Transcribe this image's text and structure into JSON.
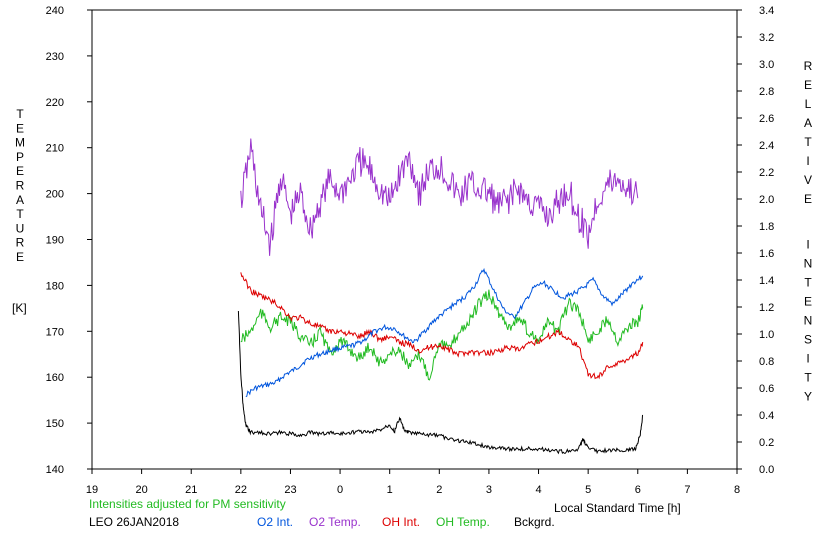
{
  "chart_data": {
    "type": "line",
    "left_axis": {
      "label": "TEMPERATURE",
      "unit": "[K]",
      "ylim": [
        140,
        240
      ],
      "ticks": [
        "140",
        "150",
        "160",
        "170",
        "180",
        "190",
        "200",
        "210",
        "220",
        "230",
        "240"
      ]
    },
    "right_axis": {
      "label": "RELATIVE INTENSITY",
      "ylim": [
        0.0,
        3.4
      ],
      "ticks": [
        "0.0",
        "0.2",
        "0.4",
        "0.6",
        "0.8",
        "1.0",
        "1.2",
        "1.4",
        "1.6",
        "1.8",
        "2.0",
        "2.2",
        "2.4",
        "2.6",
        "2.8",
        "3.0",
        "3.2",
        "3.4"
      ]
    },
    "x_axis": {
      "label": "Local Standard Time [h]",
      "range": [
        19,
        32
      ],
      "tick_labels": [
        "19",
        "20",
        "21",
        "22",
        "23",
        "0",
        "1",
        "2",
        "3",
        "4",
        "5",
        "6",
        "7",
        "8"
      ]
    },
    "note": "Intensities adjusted for PM sensitivity",
    "station": "LEO 26JAN2018",
    "grid": false,
    "series": [
      {
        "name": "O2 Int.",
        "color": "#0055dd",
        "axis": "right",
        "x": [
          22.1,
          22.3,
          22.5,
          22.7,
          22.9,
          23.1,
          23.3,
          23.5,
          23.7,
          23.9,
          24.1,
          24.3,
          24.5,
          24.7,
          24.9,
          25.1,
          25.3,
          25.5,
          25.7,
          25.9,
          26.1,
          26.3,
          26.5,
          26.7,
          26.9,
          27.1,
          27.3,
          27.5,
          27.7,
          27.9,
          28.1,
          28.3,
          28.5,
          28.7,
          28.9,
          29.1,
          29.3,
          29.5,
          29.7,
          29.9,
          30.1
        ],
        "values": [
          0.55,
          0.6,
          0.62,
          0.64,
          0.7,
          0.74,
          0.8,
          0.84,
          0.86,
          0.89,
          0.9,
          0.92,
          0.96,
          1.02,
          1.05,
          1.04,
          0.98,
          0.94,
          1.02,
          1.1,
          1.16,
          1.22,
          1.27,
          1.35,
          1.48,
          1.32,
          1.18,
          1.12,
          1.22,
          1.34,
          1.38,
          1.32,
          1.27,
          1.3,
          1.34,
          1.4,
          1.28,
          1.22,
          1.3,
          1.38,
          1.43
        ]
      },
      {
        "name": "O2 Temp.",
        "color": "#9933cc",
        "axis": "left",
        "x": [
          22.0,
          22.2,
          22.4,
          22.6,
          22.8,
          23.0,
          23.2,
          23.4,
          23.6,
          23.8,
          24.0,
          24.2,
          24.4,
          24.6,
          24.8,
          25.0,
          25.2,
          25.4,
          25.6,
          25.8,
          26.0,
          26.2,
          26.4,
          26.6,
          26.8,
          27.0,
          27.2,
          27.4,
          27.6,
          27.8,
          28.0,
          28.2,
          28.4,
          28.6,
          28.8,
          29.0,
          29.2,
          29.4,
          29.6,
          29.8,
          30.0
        ],
        "values": [
          198,
          210,
          196,
          189,
          204,
          195,
          200,
          192,
          198,
          203,
          200,
          203,
          207,
          205,
          201,
          198,
          204,
          208,
          200,
          205,
          206,
          203,
          199,
          202,
          201,
          200,
          197,
          199,
          201,
          198,
          197,
          195,
          198,
          201,
          195,
          191,
          199,
          202,
          203,
          201,
          199
        ]
      },
      {
        "name": "OH Int.",
        "color": "#dd0000",
        "axis": "right",
        "x": [
          22.0,
          22.2,
          22.4,
          22.6,
          22.8,
          23.0,
          23.2,
          23.4,
          23.6,
          23.8,
          24.0,
          24.2,
          24.4,
          24.6,
          24.8,
          25.0,
          25.2,
          25.4,
          25.6,
          25.8,
          26.0,
          26.2,
          26.4,
          26.6,
          26.8,
          27.0,
          27.2,
          27.4,
          27.6,
          27.8,
          28.0,
          28.2,
          28.4,
          28.6,
          28.8,
          29.0,
          29.2,
          29.4,
          29.6,
          29.8,
          30.0,
          30.1
        ],
        "values": [
          1.45,
          1.32,
          1.28,
          1.25,
          1.2,
          1.12,
          1.12,
          1.08,
          1.05,
          1.02,
          1.02,
          1.0,
          0.98,
          1.02,
          0.96,
          0.98,
          0.94,
          0.92,
          0.88,
          0.9,
          0.92,
          0.88,
          0.85,
          0.87,
          0.86,
          0.86,
          0.88,
          0.9,
          0.88,
          0.92,
          0.95,
          0.98,
          1.02,
          0.96,
          0.92,
          0.7,
          0.68,
          0.76,
          0.78,
          0.82,
          0.86,
          0.94
        ]
      },
      {
        "name": "OH Temp.",
        "color": "#22bb22",
        "axis": "left",
        "x": [
          22.0,
          22.2,
          22.4,
          22.6,
          22.8,
          23.0,
          23.2,
          23.4,
          23.6,
          23.8,
          24.0,
          24.2,
          24.4,
          24.6,
          24.8,
          25.0,
          25.2,
          25.4,
          25.6,
          25.8,
          26.0,
          26.2,
          26.4,
          26.6,
          26.8,
          27.0,
          27.2,
          27.4,
          27.6,
          27.8,
          28.0,
          28.2,
          28.4,
          28.6,
          28.8,
          29.0,
          29.2,
          29.4,
          29.6,
          29.8,
          30.0,
          30.1
        ],
        "values": [
          168,
          170,
          174,
          171,
          173,
          172,
          169,
          167,
          170,
          165,
          168,
          166,
          164,
          167,
          163,
          165,
          166,
          162,
          165,
          160,
          168,
          166,
          170,
          172,
          176,
          178,
          174,
          171,
          173,
          170,
          168,
          172,
          170,
          176,
          175,
          168,
          170,
          173,
          168,
          171,
          172,
          175
        ]
      },
      {
        "name": "Bckgrd.",
        "color": "#000000",
        "axis": "right",
        "x": [
          21.95,
          22.0,
          22.05,
          22.1,
          22.2,
          22.4,
          22.6,
          22.8,
          23.0,
          23.2,
          23.4,
          23.6,
          23.8,
          24.0,
          24.2,
          24.4,
          24.6,
          24.8,
          25.0,
          25.1,
          25.2,
          25.3,
          25.4,
          25.6,
          25.8,
          26.0,
          26.2,
          26.4,
          26.6,
          26.8,
          27.0,
          27.2,
          27.4,
          27.6,
          27.8,
          28.0,
          28.2,
          28.4,
          28.6,
          28.8,
          28.9,
          29.0,
          29.2,
          29.4,
          29.6,
          29.8,
          29.95,
          30.05,
          30.1
        ],
        "values": [
          1.18,
          0.7,
          0.45,
          0.32,
          0.27,
          0.27,
          0.26,
          0.27,
          0.26,
          0.25,
          0.27,
          0.26,
          0.27,
          0.26,
          0.27,
          0.28,
          0.27,
          0.29,
          0.33,
          0.28,
          0.38,
          0.28,
          0.27,
          0.26,
          0.25,
          0.25,
          0.22,
          0.21,
          0.2,
          0.18,
          0.16,
          0.16,
          0.15,
          0.15,
          0.15,
          0.15,
          0.14,
          0.13,
          0.13,
          0.14,
          0.22,
          0.15,
          0.13,
          0.14,
          0.14,
          0.14,
          0.15,
          0.25,
          0.4
        ]
      }
    ]
  }
}
